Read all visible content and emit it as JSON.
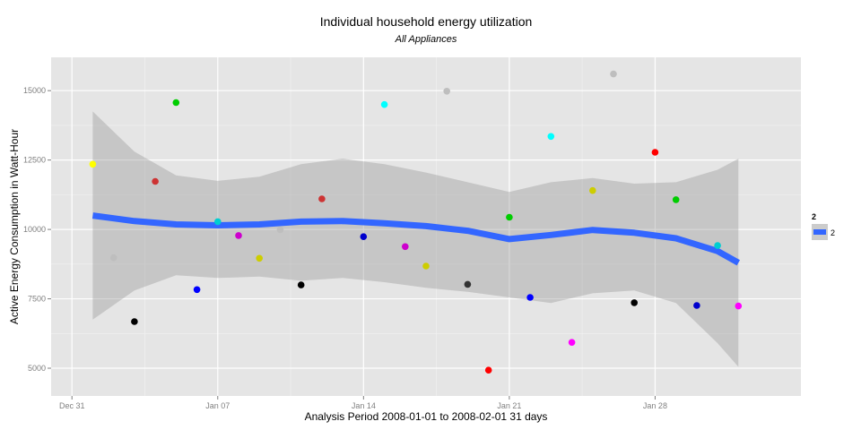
{
  "chart_data": {
    "type": "scatter",
    "title": "Individual household energy utilization",
    "subtitle": "All Appliances",
    "xlabel": "Analysis Period  2008-01-01  to  2008-02-01   31 days",
    "ylabel": "Active Energy Consumption in Watt-Hour",
    "xlim": [
      "2007-12-30",
      "2008-02-04"
    ],
    "ylim": [
      4000,
      16200
    ],
    "x_ticks": [
      {
        "date": "2007-12-31",
        "label": "Dec 31"
      },
      {
        "date": "2008-01-07",
        "label": "Jan 07"
      },
      {
        "date": "2008-01-14",
        "label": "Jan 14"
      },
      {
        "date": "2008-01-21",
        "label": "Jan 21"
      },
      {
        "date": "2008-01-28",
        "label": "Jan 28"
      }
    ],
    "y_ticks": [
      5000,
      7500,
      10000,
      12500,
      15000
    ],
    "grid": true,
    "legend": {
      "title": "2",
      "entry": "2",
      "position": "right",
      "color": "#3366ff"
    },
    "points": [
      {
        "x": "2008-01-01",
        "y": 12350,
        "color": "#ffff00"
      },
      {
        "x": "2008-01-02",
        "y": 8980,
        "color": "#bebebe"
      },
      {
        "x": "2008-01-03",
        "y": 6680,
        "color": "#000000"
      },
      {
        "x": "2008-01-04",
        "y": 11730,
        "color": "#cd3333"
      },
      {
        "x": "2008-01-05",
        "y": 14570,
        "color": "#00cd00"
      },
      {
        "x": "2008-01-06",
        "y": 7830,
        "color": "#0000ff"
      },
      {
        "x": "2008-01-07",
        "y": 10280,
        "color": "#00ced1"
      },
      {
        "x": "2008-01-08",
        "y": 9780,
        "color": "#cd00cd"
      },
      {
        "x": "2008-01-09",
        "y": 8960,
        "color": "#cdcd00"
      },
      {
        "x": "2008-01-10",
        "y": 9990,
        "color": "#bebebe"
      },
      {
        "x": "2008-01-11",
        "y": 8000,
        "color": "#000000"
      },
      {
        "x": "2008-01-12",
        "y": 11100,
        "color": "#cd3333"
      },
      {
        "x": "2008-01-14",
        "y": 9740,
        "color": "#0000cd"
      },
      {
        "x": "2008-01-15",
        "y": 14500,
        "color": "#00ffff"
      },
      {
        "x": "2008-01-16",
        "y": 9380,
        "color": "#cd00cd"
      },
      {
        "x": "2008-01-17",
        "y": 8680,
        "color": "#cdcd00"
      },
      {
        "x": "2008-01-18",
        "y": 14980,
        "color": "#bebebe"
      },
      {
        "x": "2008-01-19",
        "y": 8020,
        "color": "#333333"
      },
      {
        "x": "2008-01-20",
        "y": 4930,
        "color": "#ff0000"
      },
      {
        "x": "2008-01-21",
        "y": 10440,
        "color": "#00cd00"
      },
      {
        "x": "2008-01-22",
        "y": 7550,
        "color": "#0000ff"
      },
      {
        "x": "2008-01-23",
        "y": 13350,
        "color": "#00ffff"
      },
      {
        "x": "2008-01-24",
        "y": 5930,
        "color": "#ff00ff"
      },
      {
        "x": "2008-01-25",
        "y": 11400,
        "color": "#cdcd00"
      },
      {
        "x": "2008-01-26",
        "y": 15600,
        "color": "#bebebe"
      },
      {
        "x": "2008-01-27",
        "y": 7360,
        "color": "#000000"
      },
      {
        "x": "2008-01-28",
        "y": 12780,
        "color": "#ff0000"
      },
      {
        "x": "2008-01-29",
        "y": 11070,
        "color": "#00cd00"
      },
      {
        "x": "2008-01-30",
        "y": 7260,
        "color": "#0000cd"
      },
      {
        "x": "2008-01-31",
        "y": 9420,
        "color": "#00ced1"
      },
      {
        "x": "2008-02-01",
        "y": 7240,
        "color": "#ff00ff"
      }
    ],
    "smooth_line": {
      "color": "#3366ff",
      "x": [
        "2008-01-01",
        "2008-01-03",
        "2008-01-05",
        "2008-01-07",
        "2008-01-09",
        "2008-01-11",
        "2008-01-13",
        "2008-01-15",
        "2008-01-17",
        "2008-01-19",
        "2008-01-21",
        "2008-01-23",
        "2008-01-25",
        "2008-01-27",
        "2008-01-29",
        "2008-01-31",
        "2008-02-01"
      ],
      "y": [
        10500,
        10300,
        10180,
        10150,
        10180,
        10280,
        10300,
        10220,
        10120,
        9950,
        9650,
        9800,
        9980,
        9880,
        9680,
        9220,
        8800
      ]
    },
    "confidence_band": {
      "color": "#999999",
      "upper": [
        14250,
        12800,
        11950,
        11750,
        11900,
        12350,
        12550,
        12350,
        12050,
        11700,
        11350,
        11700,
        11850,
        11650,
        11700,
        12150,
        12550
      ],
      "lower": [
        6750,
        7800,
        8350,
        8250,
        8300,
        8150,
        8250,
        8100,
        7900,
        7750,
        7550,
        7350,
        7700,
        7800,
        7350,
        5900,
        5050
      ]
    }
  }
}
